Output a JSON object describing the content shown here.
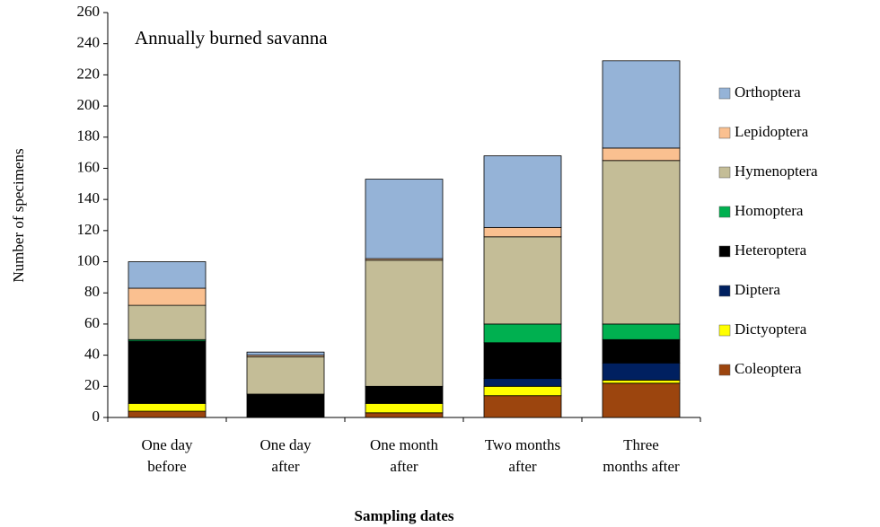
{
  "chart_data": {
    "type": "stacked_bar",
    "annotation": "Annually burned savanna",
    "x_label": "Sampling dates",
    "y_label": "Number of specimens",
    "categories": [
      [
        "One day",
        "before"
      ],
      [
        "One day",
        "after"
      ],
      [
        "One month",
        "after"
      ],
      [
        "Two months",
        "after"
      ],
      [
        "Three",
        "months after"
      ]
    ],
    "series": [
      {
        "name": "Coleoptera",
        "color": "#9c450e",
        "values": [
          4,
          0,
          3,
          14,
          22
        ]
      },
      {
        "name": "Dictyoptera",
        "color": "#ffff00",
        "values": [
          5,
          0,
          6,
          6,
          2
        ]
      },
      {
        "name": "Diptera",
        "color": "#002060",
        "values": [
          0,
          0,
          0,
          5,
          11
        ]
      },
      {
        "name": "Heteroptera",
        "color": "#000000",
        "values": [
          40,
          15,
          11,
          23,
          15
        ]
      },
      {
        "name": "Homoptera",
        "color": "#00b050",
        "values": [
          1,
          0,
          0,
          12,
          10
        ]
      },
      {
        "name": "Hymenoptera",
        "color": "#c4bd97",
        "values": [
          22,
          24,
          81,
          56,
          105
        ]
      },
      {
        "name": "Lepidoptera",
        "color": "#fac090",
        "values": [
          11,
          1,
          1,
          6,
          8
        ]
      },
      {
        "name": "Orthoptera",
        "color": "#95b3d7",
        "values": [
          17,
          2,
          51,
          46,
          56
        ]
      }
    ],
    "ylim": [
      0,
      260
    ],
    "yticks": [
      0,
      20,
      40,
      60,
      80,
      100,
      120,
      140,
      160,
      180,
      200,
      220,
      240,
      260
    ],
    "legend": "right"
  }
}
